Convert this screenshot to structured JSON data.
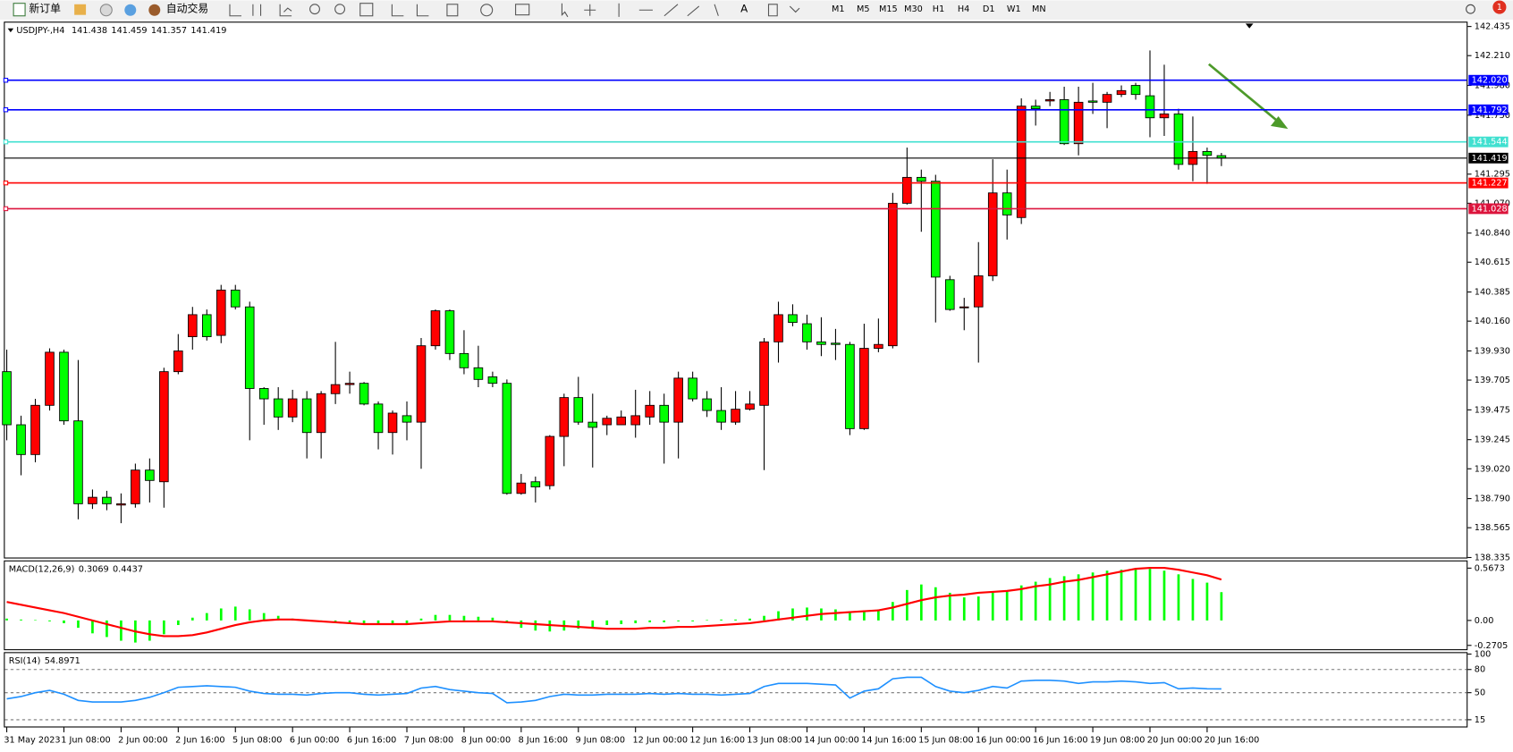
{
  "toolbar": {
    "new_order": "新订单",
    "auto_trading": "自动交易",
    "timeframes": [
      "M1",
      "M5",
      "M15",
      "M30",
      "H1",
      "H4",
      "D1",
      "W1",
      "MN"
    ],
    "badge": 1
  },
  "chart_data": {
    "type": "candlestick",
    "symbol": "USDJPY-,H4",
    "categories": [
      "31 May 2023",
      null,
      null,
      null,
      "1 Jun 08:00",
      null,
      null,
      null,
      "2 Jun 00:00",
      null,
      null,
      null,
      "2 Jun 16:00",
      null,
      null,
      null,
      "5 Jun 08:00",
      null,
      null,
      null,
      "6 Jun 00:00",
      null,
      null,
      null,
      "6 Jun 16:00",
      null,
      null,
      null,
      "7 Jun 08:00",
      null,
      null,
      null,
      "8 Jun 00:00",
      null,
      null,
      null,
      "8 Jun 16:00",
      null,
      null,
      null,
      "9 Jun 08:00",
      null,
      null,
      null,
      "12 Jun 00:00",
      null,
      null,
      null,
      "12 Jun 16:00",
      null,
      null,
      null,
      "13 Jun 08:00",
      null,
      null,
      null,
      "14 Jun 00:00",
      null,
      null,
      null,
      "14 Jun 16:00",
      null,
      null,
      null,
      "15 Jun 08:00",
      null,
      null,
      null,
      "16 Jun 00:00",
      null,
      null,
      null,
      "16 Jun 16:00",
      null,
      null,
      null,
      "19 Jun 08:00",
      null,
      null,
      null,
      "20 Jun 00:00",
      null,
      null,
      null,
      "20 Jun 16:00",
      null
    ],
    "candles": [
      [
        139.77,
        139.94,
        139.24,
        139.36
      ],
      [
        139.36,
        139.43,
        138.97,
        139.13
      ],
      [
        139.13,
        139.56,
        139.07,
        139.51
      ],
      [
        139.51,
        139.95,
        139.47,
        139.92
      ],
      [
        139.92,
        139.94,
        139.36,
        139.39
      ],
      [
        139.39,
        139.86,
        138.63,
        138.75
      ],
      [
        138.75,
        138.86,
        138.71,
        138.8
      ],
      [
        138.8,
        138.85,
        138.7,
        138.75
      ],
      [
        138.74,
        138.83,
        138.6,
        138.75
      ],
      [
        138.75,
        139.06,
        138.72,
        139.01
      ],
      [
        139.01,
        139.1,
        138.76,
        138.93
      ],
      [
        138.92,
        139.8,
        138.72,
        139.77
      ],
      [
        139.77,
        140.06,
        139.75,
        139.93
      ],
      [
        140.04,
        140.27,
        139.94,
        140.21
      ],
      [
        140.21,
        140.25,
        140.01,
        140.04
      ],
      [
        140.05,
        140.44,
        139.99,
        140.4
      ],
      [
        140.4,
        140.44,
        140.25,
        140.27
      ],
      [
        140.27,
        140.31,
        139.24,
        139.64
      ],
      [
        139.64,
        139.65,
        139.36,
        139.56
      ],
      [
        139.56,
        139.65,
        139.32,
        139.42
      ],
      [
        139.42,
        139.63,
        139.38,
        139.56
      ],
      [
        139.56,
        139.62,
        139.1,
        139.3
      ],
      [
        139.3,
        139.62,
        139.1,
        139.6
      ],
      [
        139.6,
        140,
        139.52,
        139.67
      ],
      [
        139.67,
        139.77,
        139.6,
        139.68
      ],
      [
        139.68,
        139.69,
        139.51,
        139.52
      ],
      [
        139.52,
        139.54,
        139.17,
        139.3
      ],
      [
        139.3,
        139.47,
        139.13,
        139.45
      ],
      [
        139.43,
        139.54,
        139.24,
        139.38
      ],
      [
        139.38,
        140.03,
        139.02,
        139.97
      ],
      [
        139.97,
        140.25,
        139.94,
        140.24
      ],
      [
        140.24,
        140.25,
        139.86,
        139.91
      ],
      [
        139.91,
        140.09,
        139.75,
        139.8
      ],
      [
        139.8,
        139.97,
        139.65,
        139.71
      ],
      [
        139.73,
        139.77,
        139.65,
        139.68
      ],
      [
        139.68,
        139.71,
        138.82,
        138.83
      ],
      [
        138.83,
        138.98,
        138.82,
        138.91
      ],
      [
        138.92,
        138.96,
        138.76,
        138.88
      ],
      [
        138.89,
        139.28,
        138.86,
        139.27
      ],
      [
        139.27,
        139.6,
        139.04,
        139.57
      ],
      [
        139.57,
        139.73,
        139.36,
        139.38
      ],
      [
        139.38,
        139.6,
        139.03,
        139.34
      ],
      [
        139.36,
        139.43,
        139.28,
        139.41
      ],
      [
        139.36,
        139.47,
        139.36,
        139.42
      ],
      [
        139.36,
        139.63,
        139.26,
        139.43
      ],
      [
        139.42,
        139.62,
        139.36,
        139.51
      ],
      [
        139.51,
        139.6,
        139.06,
        139.38
      ],
      [
        139.38,
        139.77,
        139.1,
        139.72
      ],
      [
        139.72,
        139.77,
        139.54,
        139.56
      ],
      [
        139.56,
        139.62,
        139.42,
        139.47
      ],
      [
        139.47,
        139.65,
        139.32,
        139.38
      ],
      [
        139.38,
        139.62,
        139.36,
        139.48
      ],
      [
        139.48,
        139.62,
        139.47,
        139.52
      ],
      [
        139.51,
        140.03,
        139.01,
        140
      ],
      [
        140,
        140.31,
        139.84,
        140.21
      ],
      [
        140.21,
        140.29,
        140.12,
        140.15
      ],
      [
        140.14,
        140.21,
        139.94,
        140
      ],
      [
        140,
        140.19,
        139.89,
        139.98
      ],
      [
        139.99,
        140.1,
        139.86,
        139.98
      ],
      [
        139.98,
        140,
        139.28,
        139.33
      ],
      [
        139.33,
        140.14,
        139.32,
        139.95
      ],
      [
        139.95,
        140.18,
        139.92,
        139.98
      ],
      [
        139.97,
        141.15,
        139.95,
        141.07
      ],
      [
        141.07,
        141.5,
        141.06,
        141.27
      ],
      [
        141.27,
        141.33,
        140.85,
        141.24
      ],
      [
        141.24,
        141.29,
        140.15,
        140.5
      ],
      [
        140.48,
        140.51,
        140.24,
        140.25
      ],
      [
        140.27,
        140.34,
        140.09,
        140.27
      ],
      [
        140.27,
        140.77,
        139.84,
        140.51
      ],
      [
        140.51,
        141.41,
        140.47,
        141.15
      ],
      [
        141.15,
        141.33,
        140.79,
        140.98
      ],
      [
        140.96,
        141.88,
        140.91,
        141.82
      ],
      [
        141.82,
        141.87,
        141.67,
        141.8
      ],
      [
        141.86,
        141.93,
        141.82,
        141.87
      ],
      [
        141.87,
        141.97,
        141.52,
        141.53
      ],
      [
        141.53,
        141.97,
        141.44,
        141.85
      ],
      [
        141.86,
        142,
        141.76,
        141.85
      ],
      [
        141.85,
        141.93,
        141.65,
        141.91
      ],
      [
        141.91,
        141.98,
        141.89,
        141.94
      ],
      [
        141.98,
        142,
        141.87,
        141.91
      ],
      [
        141.9,
        142.25,
        141.58,
        141.73
      ],
      [
        141.73,
        142.14,
        141.59,
        141.76
      ],
      [
        141.76,
        141.8,
        141.33,
        141.37
      ],
      [
        141.37,
        141.74,
        141.24,
        141.47
      ],
      [
        141.47,
        141.5,
        141.22,
        141.44
      ],
      [
        141.438,
        141.459,
        141.357,
        141.419
      ]
    ],
    "up_color": "#ff0000",
    "down_color": "#00ff00",
    "bid_line_color": "#000000",
    "ylim": [
      138.335,
      142.435
    ],
    "yticks": [
      142.435,
      {
        "value": 142.21,
        "label": "142.210"
      },
      {
        "value": 141.98,
        "label": "141.980"
      },
      {
        "value": 141.75,
        "label": "141.750"
      },
      141.295,
      {
        "value": 141.07,
        "label": "141.070"
      },
      {
        "value": 140.84,
        "label": "140.840"
      },
      140.615,
      140.385,
      {
        "value": 140.16,
        "label": "140.160"
      },
      {
        "value": 139.93,
        "label": "139.930"
      },
      139.705,
      139.475,
      139.245,
      {
        "value": 139.02,
        "label": "139.020"
      },
      {
        "value": 138.79,
        "label": "138.790"
      },
      138.565,
      138.335
    ],
    "levels": [
      {
        "value": 142.02,
        "label": "142.020",
        "color": "#0000ff"
      },
      {
        "value": 141.792,
        "label": "141.792",
        "color": "#0000ff"
      },
      {
        "value": 141.544,
        "label": "141.544",
        "color": "#40e0d0"
      },
      {
        "value": 141.227,
        "label": "141.227",
        "color": "#ff0000"
      },
      {
        "value": 141.028,
        "label": "141.028",
        "color": "#dc143c"
      }
    ],
    "macd": {
      "label": "MACD(12,26,9)",
      "hist_color": "#00ff00",
      "signal_color": "#ff0000",
      "histogram": [
        0.02,
        0.01,
        0,
        -0.01,
        -0.03,
        -0.08,
        -0.14,
        -0.18,
        -0.22,
        -0.24,
        -0.22,
        -0.15,
        -0.05,
        0.03,
        0.08,
        0.13,
        0.15,
        0.12,
        0.08,
        0.05,
        0.02,
        0,
        -0.01,
        -0.01,
        -0.02,
        -0.03,
        -0.04,
        -0.05,
        -0.03,
        0.02,
        0.06,
        0.06,
        0.05,
        0.04,
        0.03,
        -0.03,
        -0.08,
        -0.11,
        -0.12,
        -0.11,
        -0.09,
        -0.07,
        -0.05,
        -0.04,
        -0.03,
        -0.02,
        -0.02,
        -0.01,
        -0.01,
        0,
        0.01,
        0.01,
        0.02,
        0.05,
        0.1,
        0.13,
        0.14,
        0.13,
        0.12,
        0.1,
        0.11,
        0.12,
        0.2,
        0.33,
        0.39,
        0.36,
        0.3,
        0.25,
        0.26,
        0.3,
        0.31,
        0.38,
        0.42,
        0.46,
        0.48,
        0.5,
        0.52,
        0.54,
        0.55,
        0.56,
        0.56,
        0.54,
        0.5,
        0.45,
        0.41,
        0.3069
      ],
      "signal": [
        0.2,
        0.17,
        0.14,
        0.11,
        0.08,
        0.04,
        0,
        -0.04,
        -0.08,
        -0.12,
        -0.15,
        -0.17,
        -0.17,
        -0.16,
        -0.13,
        -0.09,
        -0.05,
        -0.02,
        0,
        0.01,
        0.01,
        0,
        -0.01,
        -0.02,
        -0.03,
        -0.04,
        -0.04,
        -0.04,
        -0.04,
        -0.03,
        -0.02,
        -0.01,
        -0.01,
        -0.01,
        -0.01,
        -0.02,
        -0.03,
        -0.04,
        -0.05,
        -0.06,
        -0.07,
        -0.08,
        -0.09,
        -0.09,
        -0.09,
        -0.08,
        -0.08,
        -0.07,
        -0.07,
        -0.06,
        -0.05,
        -0.04,
        -0.03,
        -0.01,
        0.01,
        0.03,
        0.05,
        0.07,
        0.08,
        0.09,
        0.1,
        0.11,
        0.14,
        0.18,
        0.22,
        0.25,
        0.27,
        0.28,
        0.3,
        0.31,
        0.32,
        0.34,
        0.37,
        0.39,
        0.42,
        0.44,
        0.47,
        0.5,
        0.53,
        0.56,
        0.57,
        0.57,
        0.55,
        0.52,
        0.49,
        0.4437
      ],
      "ylim": [
        -0.2705,
        0.5673
      ],
      "yticks": [
        0.5673,
        {
          "value": 0,
          "label": "0.00"
        },
        -0.2705
      ]
    },
    "rsi": {
      "label": "RSI(14)",
      "color": "#1e90ff",
      "dashed_grid": true,
      "values": [
        42,
        45,
        50,
        53,
        48,
        40,
        38,
        38,
        38,
        40,
        44,
        50,
        57,
        58,
        59,
        58,
        57,
        52,
        49,
        48,
        48,
        47,
        49,
        50,
        50,
        48,
        47,
        48,
        49,
        56,
        58,
        54,
        52,
        50,
        49,
        37,
        38,
        40,
        45,
        48,
        47,
        47,
        48,
        48,
        48,
        49,
        48,
        49,
        48,
        48,
        47,
        48,
        49,
        58,
        62,
        62,
        62,
        61,
        60,
        43,
        52,
        55,
        68,
        70,
        70,
        58,
        52,
        50,
        53,
        58,
        56,
        65,
        66,
        66,
        65,
        62,
        64,
        64,
        65,
        64,
        62,
        63,
        55,
        56,
        55,
        54.8971
      ],
      "ylim": [
        0,
        100
      ],
      "yticks": [
        100,
        80,
        50,
        15
      ]
    }
  }
}
